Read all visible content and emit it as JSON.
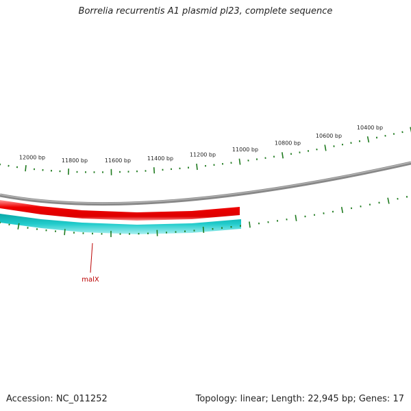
{
  "title": "Borrelia recurrentis A1 plasmid pl23, complete sequence",
  "footer": {
    "accession": "Accession: NC_011252",
    "summary": "Topology: linear; Length: 22,945 bp; Genes: 17"
  },
  "scale_labels": [
    "12000 bp",
    "11800 bp",
    "11600 bp",
    "11400 bp",
    "11200 bp",
    "11000 bp",
    "10800 bp",
    "10600 bp",
    "10400 bp"
  ],
  "gene": {
    "name": "malX"
  },
  "colors": {
    "backbone": "#888888",
    "forward_feature": "#ee0000",
    "reverse_feature": "#1ec8c8",
    "tick": "#1e7a1e",
    "gene_label": "#bb0000",
    "text": "#222222"
  }
}
